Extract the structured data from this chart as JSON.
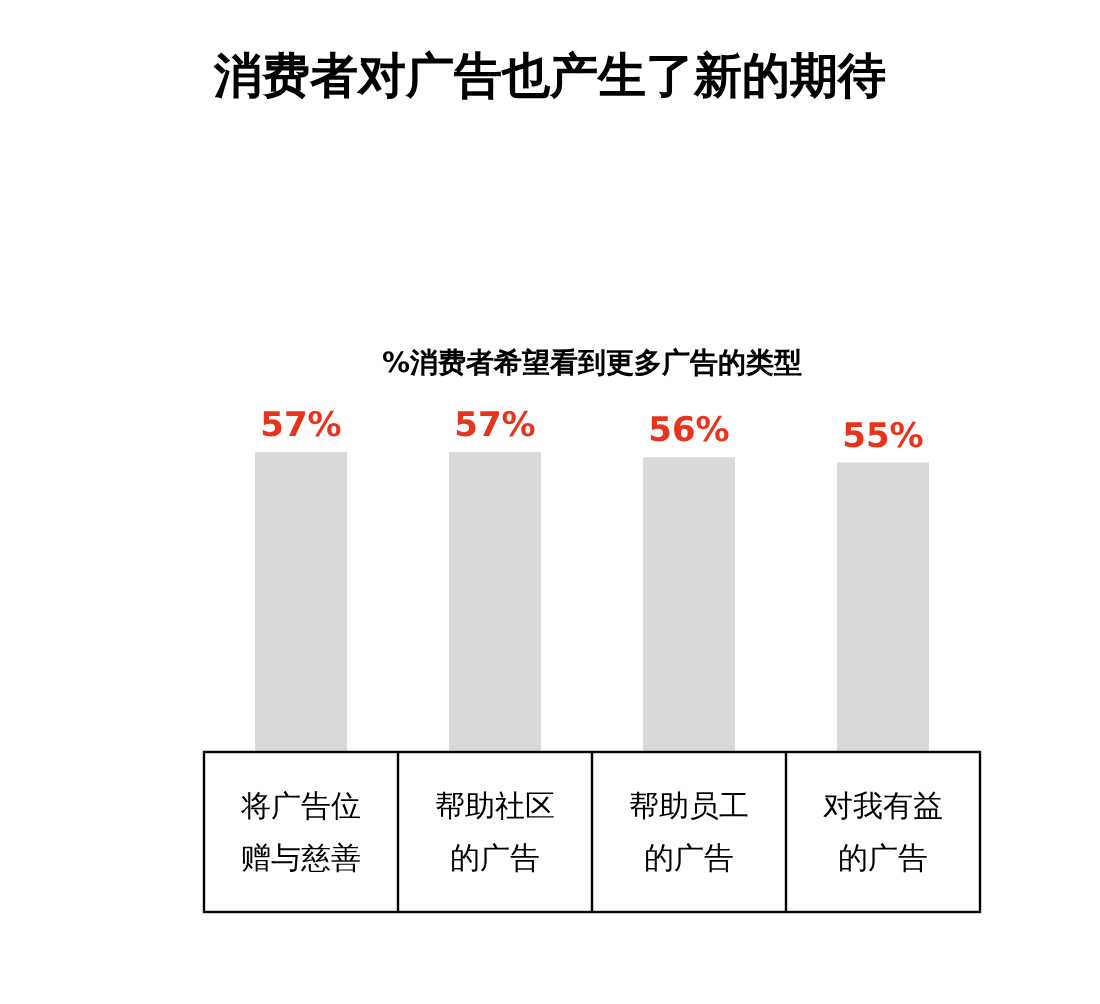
{
  "chart_data": {
    "type": "bar",
    "title": "消费者对广告也产生了新的期待",
    "subtitle": "%消费者希望看到更多广告的类型",
    "categories": [
      "将广告位赠与慈善",
      "帮助社区的广告",
      "帮助员工的广告",
      "对我有益的广告"
    ],
    "values": [
      57,
      57,
      56,
      55
    ],
    "color": "#d9d9d9",
    "value_labels": [
      "57%",
      "57%",
      "56%",
      "55%"
    ]
  }
}
